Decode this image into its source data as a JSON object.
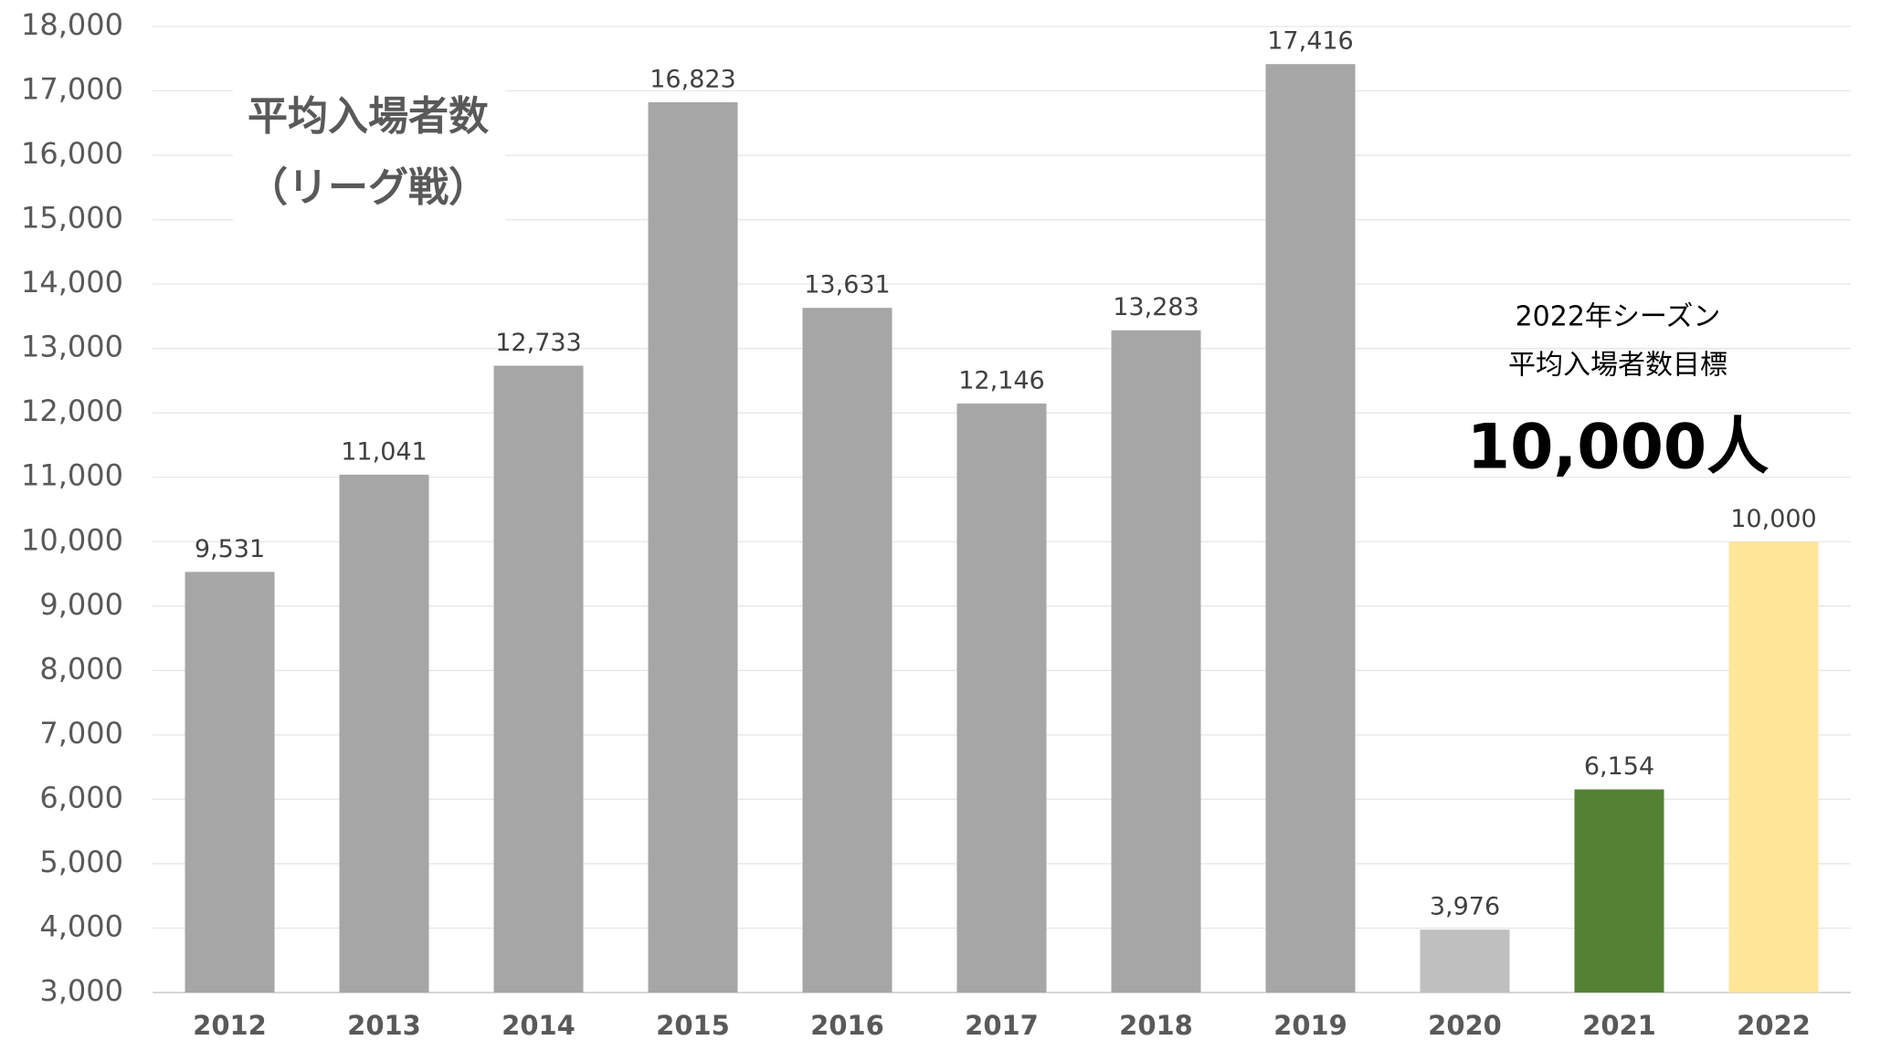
{
  "chart_data": {
    "type": "bar",
    "title": "平均入場者数",
    "subtitle": "（リーグ戦）",
    "annotations": [
      "2022年シーズン",
      "平均入場者数目標",
      "10,000人"
    ],
    "categories": [
      "2012",
      "2013",
      "2014",
      "2015",
      "2016",
      "2017",
      "2018",
      "2019",
      "2020",
      "2021",
      "2022"
    ],
    "values": [
      9531,
      11041,
      12733,
      16823,
      13631,
      12146,
      13283,
      17416,
      3976,
      6154,
      10000
    ],
    "value_labels": [
      "9,531",
      "11,041",
      "12,733",
      "16,823",
      "13,631",
      "12,146",
      "13,283",
      "17,416",
      "3,976",
      "6,154",
      "10,000"
    ],
    "colors": [
      "#a6a6a6",
      "#a6a6a6",
      "#a6a6a6",
      "#a6a6a6",
      "#a6a6a6",
      "#a6a6a6",
      "#a6a6a6",
      "#a6a6a6",
      "#bfbfbf",
      "#548235",
      "#ffe699"
    ],
    "ylim": [
      3000,
      18000
    ],
    "yticks": [
      {
        "value": 3000,
        "label": "3,000"
      },
      {
        "value": 4000,
        "label": "4,000"
      },
      {
        "value": 5000,
        "label": "5,000"
      },
      {
        "value": 6000,
        "label": "6,000"
      },
      {
        "value": 7000,
        "label": "7,000"
      },
      {
        "value": 8000,
        "label": "8,000"
      },
      {
        "value": 9000,
        "label": "9,000"
      },
      {
        "value": 10000,
        "label": "10,000"
      },
      {
        "value": 11000,
        "label": "11,000"
      },
      {
        "value": 12000,
        "label": "12,000"
      },
      {
        "value": 13000,
        "label": "13,000"
      },
      {
        "value": 14000,
        "label": "14,000"
      },
      {
        "value": 15000,
        "label": "15,000"
      },
      {
        "value": 16000,
        "label": "16,000"
      },
      {
        "value": 17000,
        "label": "17,000"
      },
      {
        "value": 18000,
        "label": "18,000"
      }
    ],
    "grid": true
  }
}
